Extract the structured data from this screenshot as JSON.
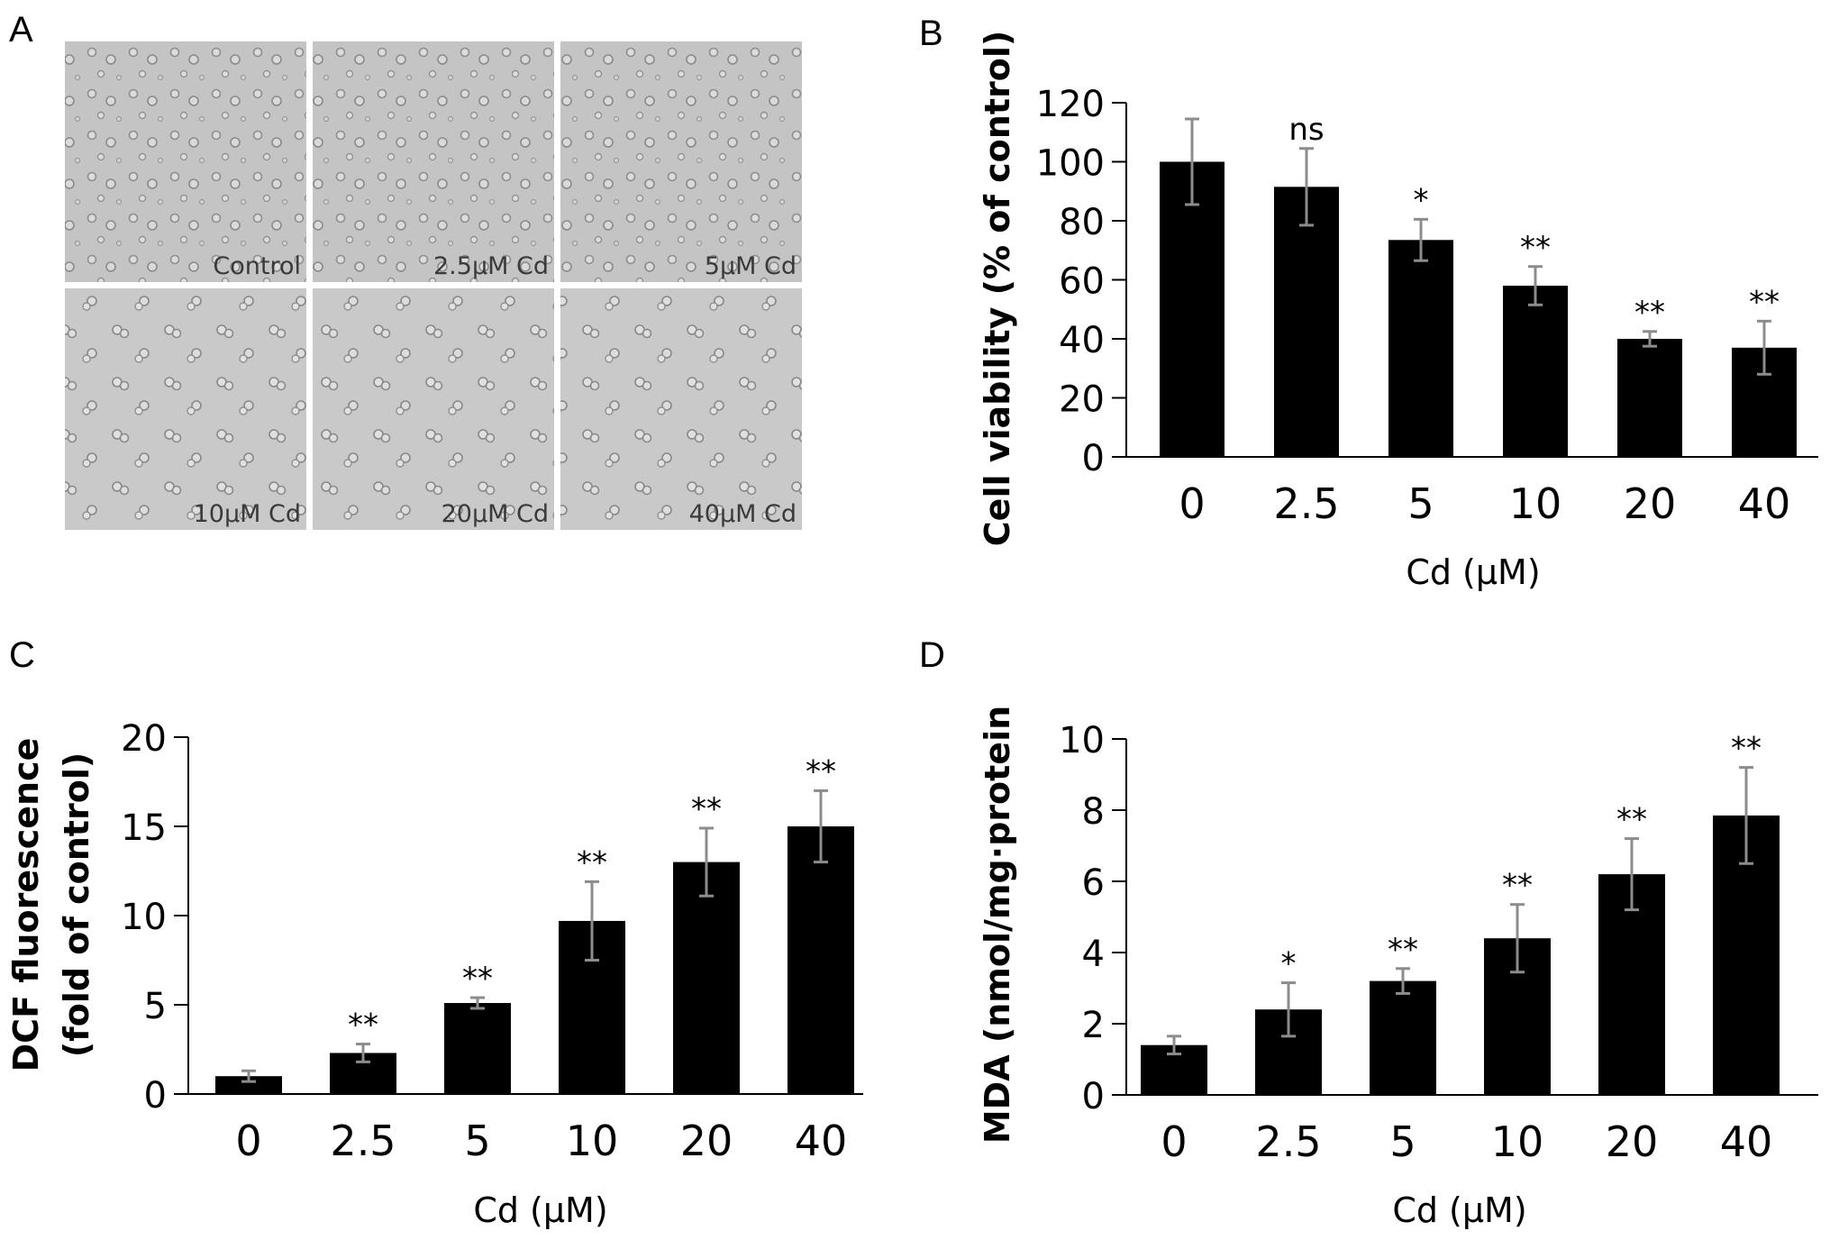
{
  "panels": {
    "A": {
      "letter": "A",
      "images": [
        {
          "label": "Control"
        },
        {
          "label": "2.5μM Cd"
        },
        {
          "label": "5μM Cd"
        },
        {
          "label": "10μM Cd"
        },
        {
          "label": "20μM Cd"
        },
        {
          "label": "40μM Cd"
        }
      ]
    }
  },
  "chart_data": [
    {
      "id": "B",
      "letter": "B",
      "type": "bar",
      "categories": [
        "0",
        "2.5",
        "5",
        "10",
        "20",
        "40"
      ],
      "values": [
        100,
        91.5,
        73.5,
        58,
        40,
        37
      ],
      "errors": [
        14.5,
        13,
        7,
        6.5,
        2.5,
        9
      ],
      "significance": [
        "",
        "ns",
        "*",
        "**",
        "**",
        "**"
      ],
      "ylim": [
        0,
        120
      ],
      "yticks": [
        0,
        20,
        40,
        60,
        80,
        100,
        120
      ],
      "ylabel": "Cell viability (% of control)",
      "xlabel": "Cd (μM)",
      "grid": false,
      "bar_color": "#000000",
      "error_color": "#8c8c8c"
    },
    {
      "id": "C",
      "letter": "C",
      "type": "bar",
      "categories": [
        "0",
        "2.5",
        "5",
        "10",
        "20",
        "40"
      ],
      "values": [
        1,
        2.3,
        5.1,
        9.7,
        13,
        15
      ],
      "errors": [
        0.3,
        0.5,
        0.3,
        2.2,
        1.9,
        2
      ],
      "significance": [
        "",
        "**",
        "**",
        "**",
        "**",
        "**"
      ],
      "ylim": [
        0,
        20
      ],
      "yticks": [
        0,
        5,
        10,
        15,
        20
      ],
      "ylabel": "DCF fluorescence",
      "ylabel2": "(fold of control)",
      "xlabel": "Cd (μM)",
      "grid": false,
      "bar_color": "#000000",
      "error_color": "#8c8c8c"
    },
    {
      "id": "D",
      "letter": "D",
      "type": "bar",
      "categories": [
        "0",
        "2.5",
        "5",
        "10",
        "20",
        "40"
      ],
      "values": [
        1.4,
        2.4,
        3.2,
        4.4,
        6.2,
        7.85
      ],
      "errors": [
        0.25,
        0.75,
        0.35,
        0.95,
        1,
        1.35
      ],
      "significance": [
        "",
        "*",
        "**",
        "**",
        "**",
        "**"
      ],
      "ylim": [
        0,
        10
      ],
      "yticks": [
        0,
        2,
        4,
        6,
        8,
        10
      ],
      "ylabel": "MDA (nmol/mg·protein",
      "xlabel": "Cd (μM)",
      "grid": false,
      "bar_color": "#000000",
      "error_color": "#8c8c8c"
    }
  ]
}
